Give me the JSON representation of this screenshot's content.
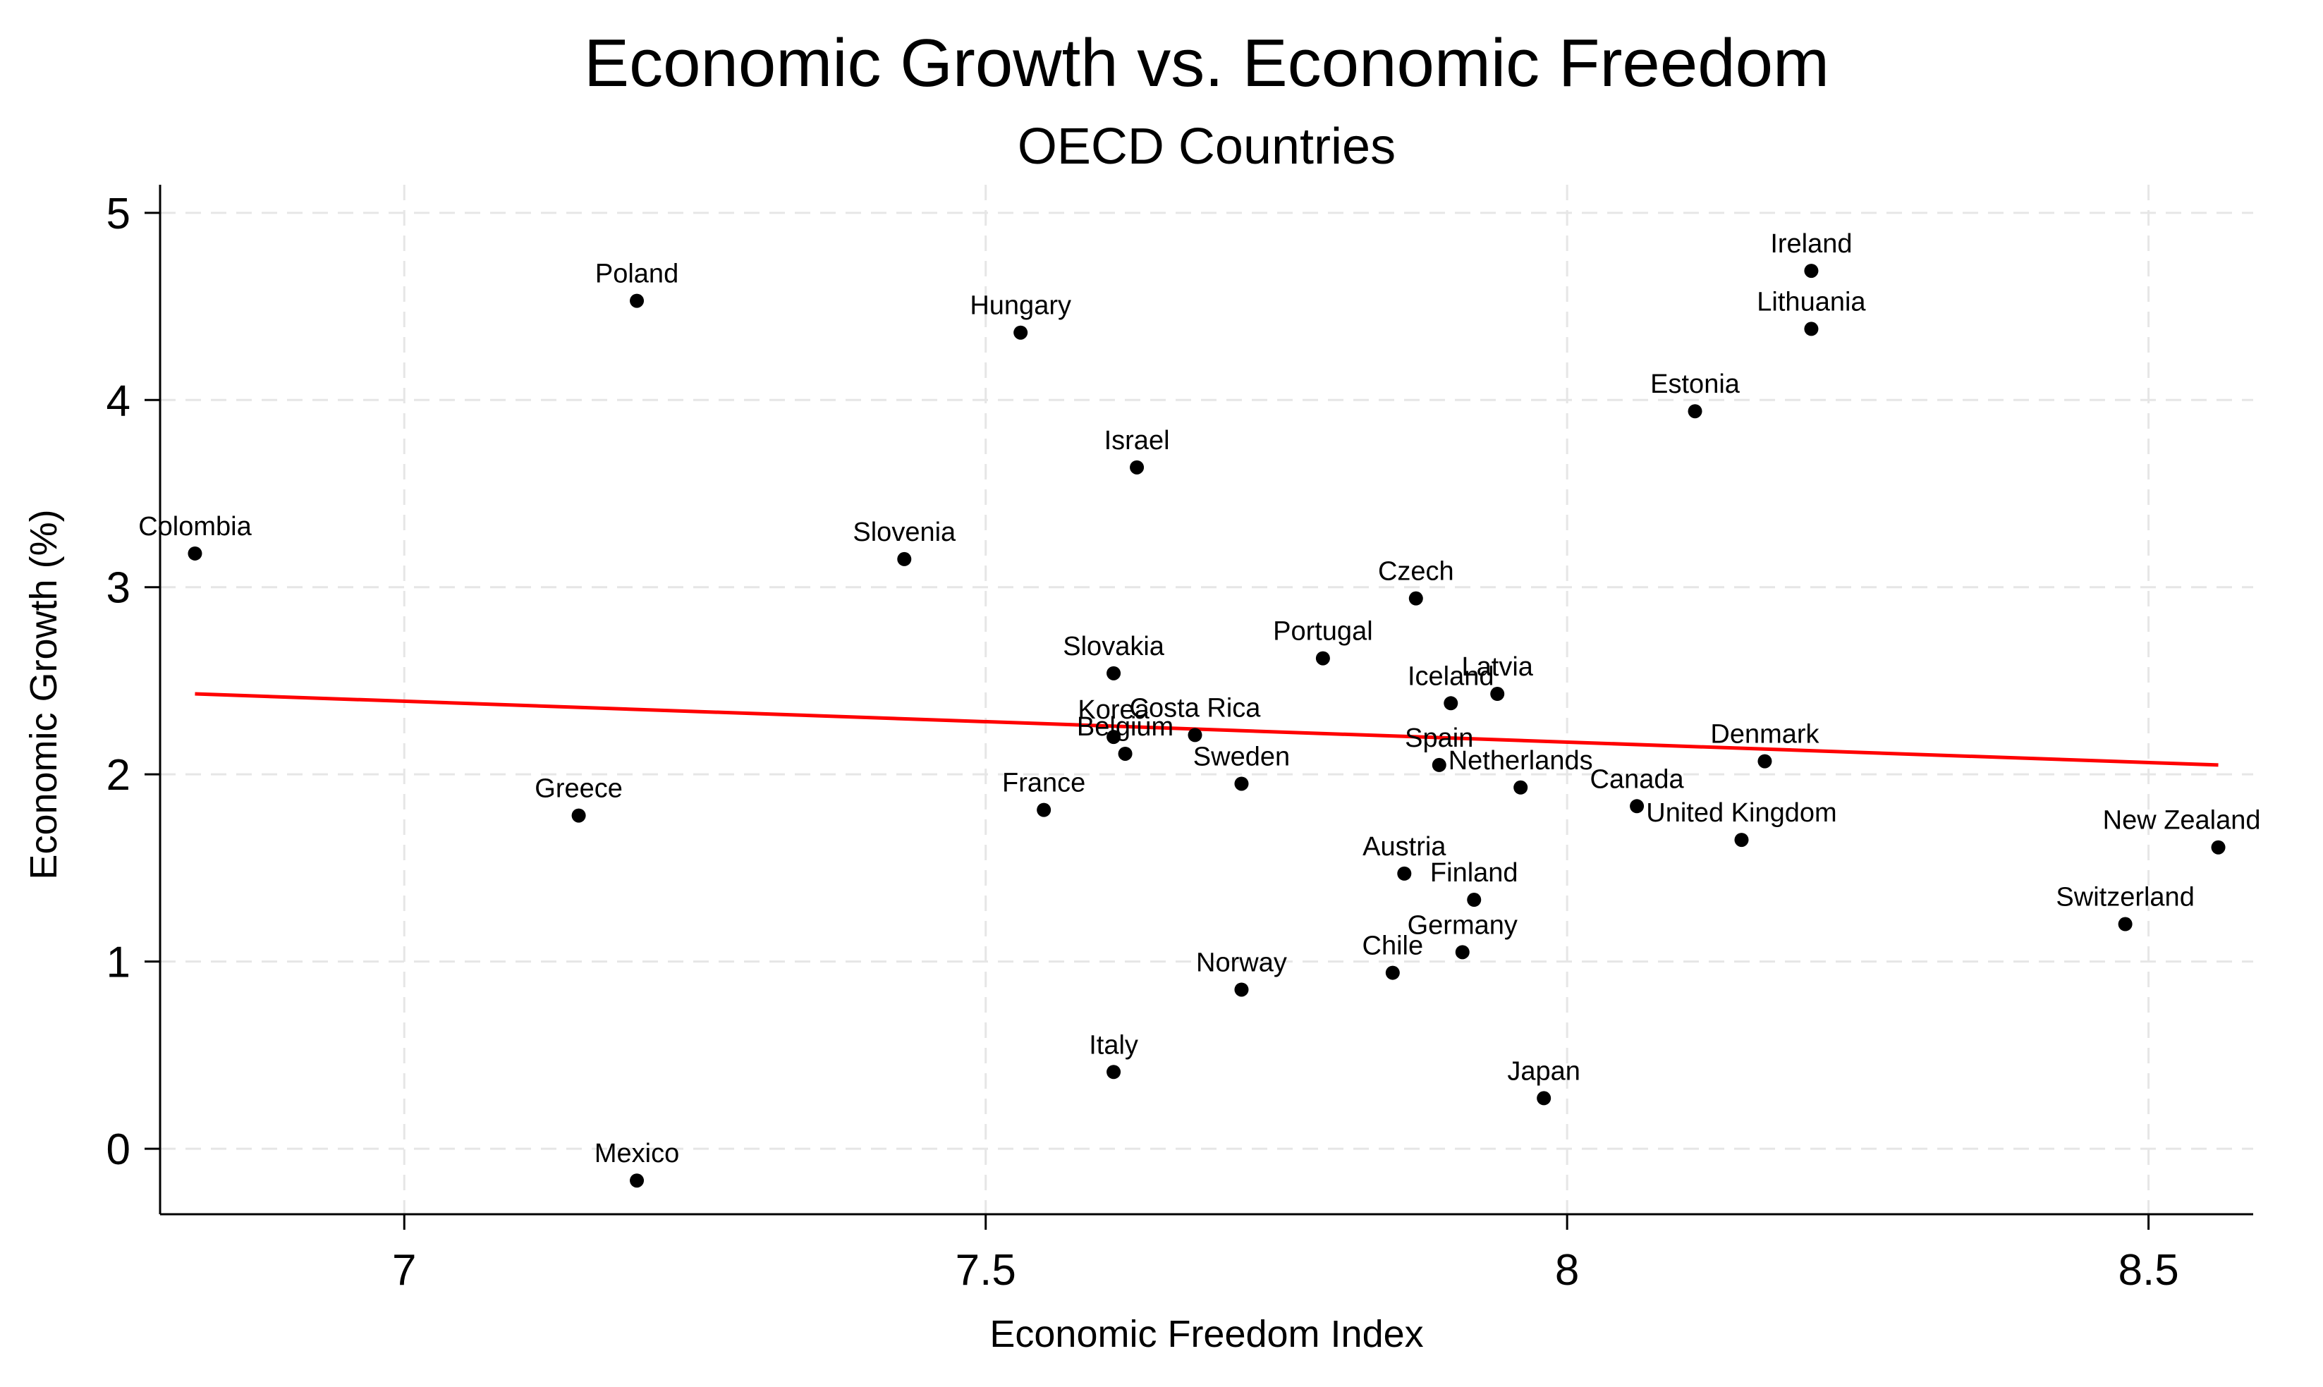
{
  "chart_data": {
    "type": "scatter",
    "title": "Economic Growth vs. Economic Freedom",
    "subtitle": "OECD Countries",
    "xlabel": "Economic Freedom Index",
    "ylabel": "Economic Growth (%)",
    "xlim": [
      6.79,
      8.59
    ],
    "ylim": [
      -0.35,
      5.15
    ],
    "xticks": [
      7,
      7.5,
      8,
      8.5
    ],
    "xtick_labels": [
      "7",
      "7.5",
      "8",
      "8.5"
    ],
    "yticks": [
      0,
      1,
      2,
      3,
      4,
      5
    ],
    "ytick_labels": [
      "0",
      "1",
      "2",
      "3",
      "4",
      "5"
    ],
    "grid": true,
    "colors": {
      "points": "#000000",
      "fit_line": "#ff0000",
      "grid": "#e6e6e6"
    },
    "fit_line": {
      "x": [
        6.82,
        8.56
      ],
      "y": [
        2.43,
        2.05
      ]
    },
    "points": [
      {
        "label": "Ireland",
        "x": 8.21,
        "y": 4.69
      },
      {
        "label": "Lithuania",
        "x": 8.21,
        "y": 4.38
      },
      {
        "label": "Poland",
        "x": 7.2,
        "y": 4.53
      },
      {
        "label": "Hungary",
        "x": 7.53,
        "y": 4.36
      },
      {
        "label": "Estonia",
        "x": 8.11,
        "y": 3.94
      },
      {
        "label": "Israel",
        "x": 7.63,
        "y": 3.64
      },
      {
        "label": "Colombia",
        "x": 6.82,
        "y": 3.18
      },
      {
        "label": "Slovenia",
        "x": 7.43,
        "y": 3.15
      },
      {
        "label": "Czech",
        "x": 7.87,
        "y": 2.94
      },
      {
        "label": "Portugal",
        "x": 7.79,
        "y": 2.62
      },
      {
        "label": "Slovakia",
        "x": 7.61,
        "y": 2.54
      },
      {
        "label": "Latvia",
        "x": 7.94,
        "y": 2.43
      },
      {
        "label": "Iceland",
        "x": 7.9,
        "y": 2.38
      },
      {
        "label": "Costa Rica",
        "x": 7.68,
        "y": 2.21
      },
      {
        "label": "Korea",
        "x": 7.61,
        "y": 2.2
      },
      {
        "label": "Belgium",
        "x": 7.62,
        "y": 2.11
      },
      {
        "label": "Denmark",
        "x": 8.17,
        "y": 2.07
      },
      {
        "label": "Spain",
        "x": 7.89,
        "y": 2.05
      },
      {
        "label": "Sweden",
        "x": 7.72,
        "y": 1.95
      },
      {
        "label": "Netherlands",
        "x": 7.96,
        "y": 1.93
      },
      {
        "label": "Canada",
        "x": 8.06,
        "y": 1.83
      },
      {
        "label": "France",
        "x": 7.55,
        "y": 1.81
      },
      {
        "label": "Greece",
        "x": 7.15,
        "y": 1.78
      },
      {
        "label": "United Kingdom",
        "x": 8.15,
        "y": 1.65
      },
      {
        "label": "New Zealand",
        "x": 8.56,
        "y": 1.61
      },
      {
        "label": "Austria",
        "x": 7.86,
        "y": 1.47
      },
      {
        "label": "Finland",
        "x": 7.92,
        "y": 1.33
      },
      {
        "label": "Switzerland",
        "x": 8.48,
        "y": 1.2
      },
      {
        "label": "Germany",
        "x": 7.91,
        "y": 1.05
      },
      {
        "label": "Chile",
        "x": 7.85,
        "y": 0.94
      },
      {
        "label": "Norway",
        "x": 7.72,
        "y": 0.85
      },
      {
        "label": "Italy",
        "x": 7.61,
        "y": 0.41
      },
      {
        "label": "Japan",
        "x": 7.98,
        "y": 0.27
      },
      {
        "label": "Mexico",
        "x": 7.2,
        "y": -0.17
      }
    ]
  }
}
